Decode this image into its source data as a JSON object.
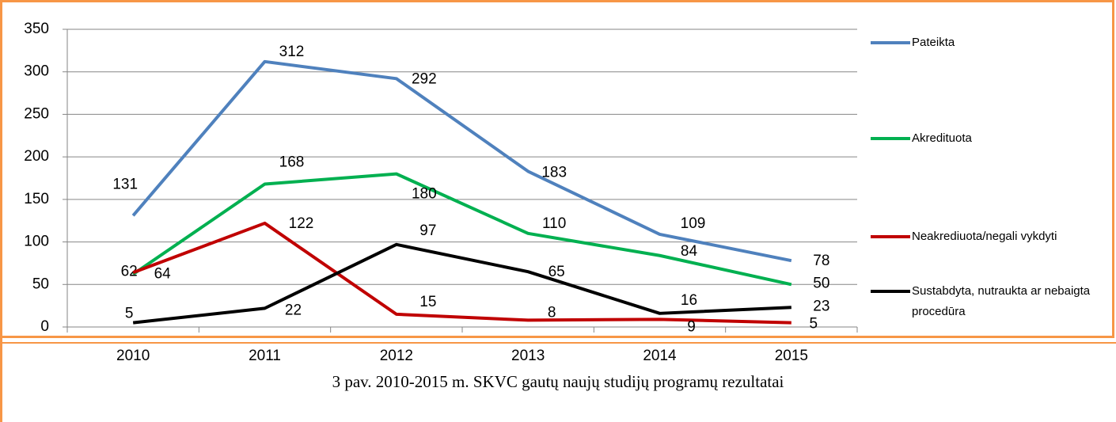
{
  "chart_data": {
    "type": "line",
    "caption": "3 pav. 2010-2015 m. SKVC gautų naujų studijų programų rezultatai",
    "categories": [
      "2010",
      "2011",
      "2012",
      "2013",
      "2014",
      "2015"
    ],
    "series": [
      {
        "name": "Pateikta",
        "color": "#4f81bd",
        "values": [
          131,
          312,
          292,
          183,
          109,
          78
        ]
      },
      {
        "name": "Akredituota",
        "color": "#00b050",
        "values": [
          62,
          168,
          180,
          110,
          84,
          50
        ]
      },
      {
        "name": "Neakrediuota/negali vykdyti",
        "color": "#c00000",
        "values": [
          64,
          122,
          15,
          8,
          9,
          5
        ]
      },
      {
        "name": "Sustabdyta, nutraukta ar nebaigta procedūra",
        "color": "#000000",
        "values": [
          5,
          22,
          97,
          65,
          16,
          23
        ]
      }
    ],
    "ylim": [
      0,
      350
    ],
    "yticks": [
      0,
      50,
      100,
      150,
      200,
      250,
      300,
      350
    ],
    "grid": true,
    "legend": "right"
  }
}
